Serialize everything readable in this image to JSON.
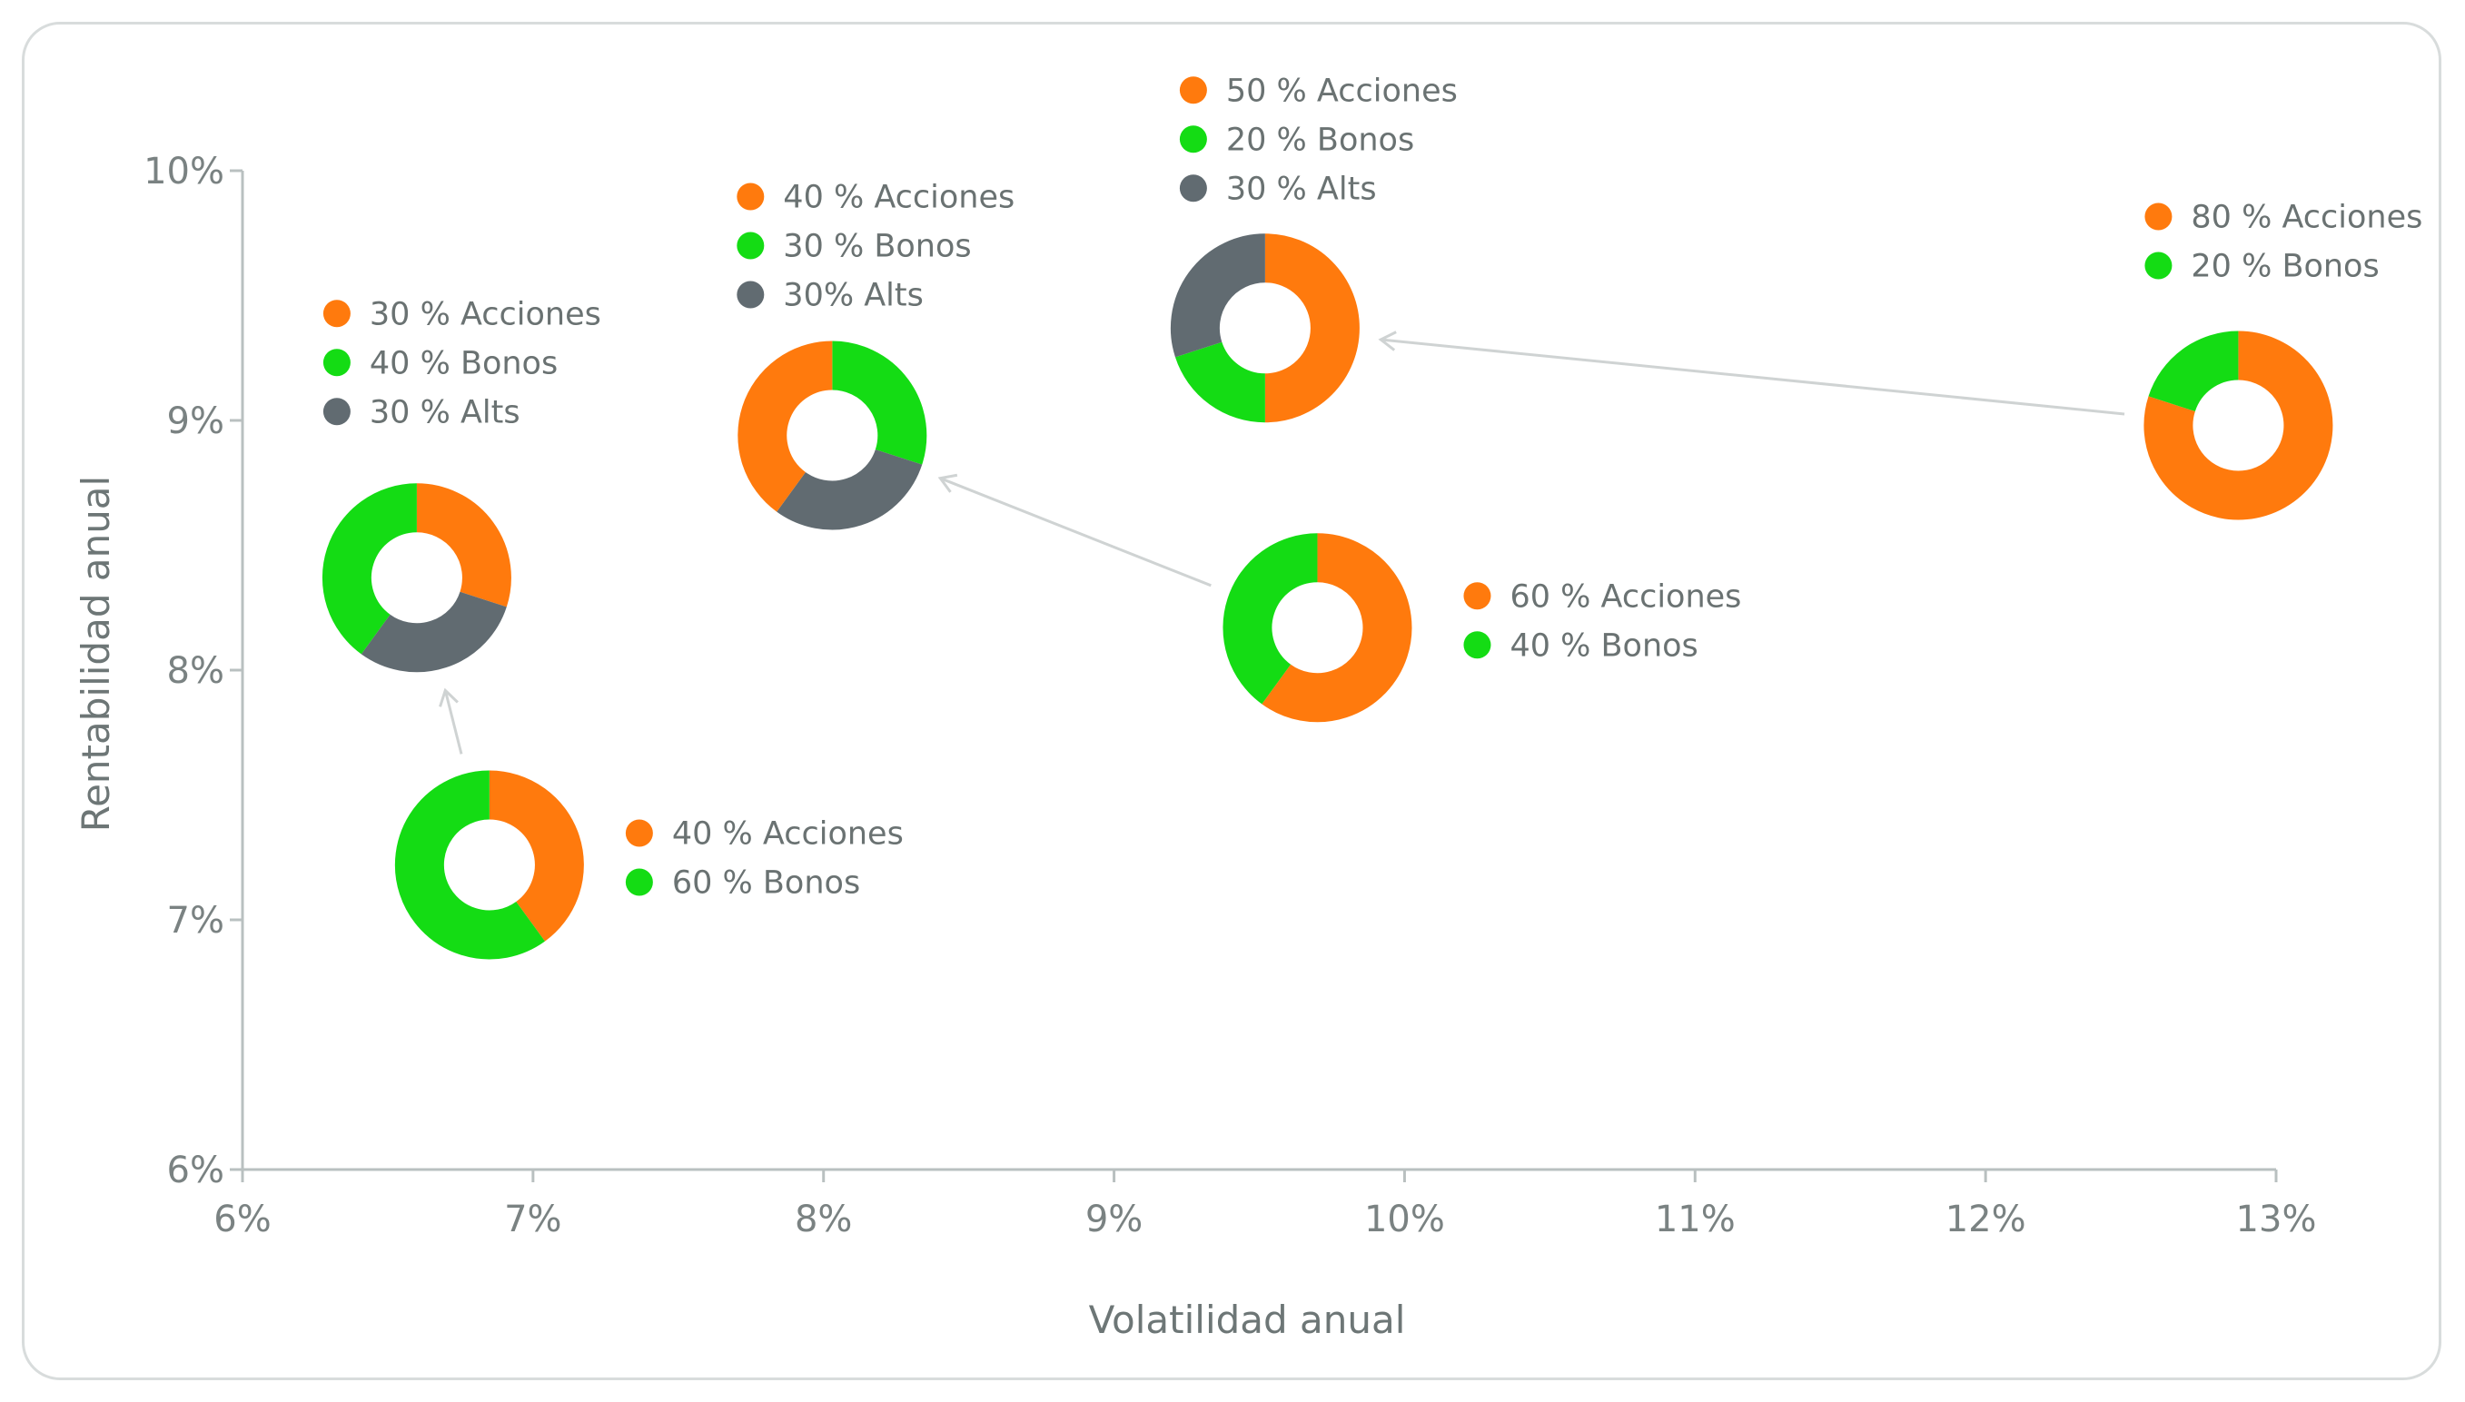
{
  "chart_data": {
    "type": "scatter",
    "title": "",
    "xlabel": "Volatilidad anual",
    "ylabel": "Rentabilidad anual",
    "xlim": [
      6,
      13
    ],
    "ylim": [
      6,
      10
    ],
    "x_ticks": [
      "6%",
      "7%",
      "8%",
      "9%",
      "10%",
      "11%",
      "12%",
      "13%"
    ],
    "y_ticks": [
      "6%",
      "7%",
      "8%",
      "9%",
      "10%"
    ],
    "grid": false,
    "colors": {
      "acciones": "#ff7a0d",
      "bonos": "#14dc14",
      "alts": "#616b71"
    },
    "points": [
      {
        "id": "p40-60",
        "x": 6.85,
        "y": 7.22,
        "allocation": [
          {
            "key": "acciones",
            "pct": 40
          },
          {
            "key": "bonos",
            "pct": 60
          }
        ],
        "legend": [
          "40 % Acciones",
          "60 % Bonos"
        ]
      },
      {
        "id": "p30-40-30",
        "x": 6.6,
        "y": 8.37,
        "allocation": [
          {
            "key": "acciones",
            "pct": 30
          },
          {
            "key": "alts",
            "pct": 30
          },
          {
            "key": "bonos",
            "pct": 40
          }
        ],
        "legend": [
          "30 % Acciones",
          "40 % Bonos",
          "30 % Alts"
        ]
      },
      {
        "id": "p40-30-30",
        "x": 8.03,
        "y": 8.94,
        "allocation": [
          {
            "key": "bonos",
            "pct": 30
          },
          {
            "key": "alts",
            "pct": 30
          },
          {
            "key": "acciones",
            "pct": 40
          }
        ],
        "legend": [
          "40 % Acciones",
          "30 % Bonos",
          "30% Alts"
        ]
      },
      {
        "id": "p60-40",
        "x": 9.7,
        "y": 8.17,
        "allocation": [
          {
            "key": "acciones",
            "pct": 60
          },
          {
            "key": "bonos",
            "pct": 40
          }
        ],
        "legend": [
          "60 % Acciones",
          "40 % Bonos"
        ]
      },
      {
        "id": "p50-20-30",
        "x": 9.52,
        "y": 9.37,
        "allocation": [
          {
            "key": "acciones",
            "pct": 50
          },
          {
            "key": "bonos",
            "pct": 20
          },
          {
            "key": "alts",
            "pct": 30
          }
        ],
        "legend": [
          "50 % Acciones",
          "20 % Bonos",
          "30 % Alts"
        ]
      },
      {
        "id": "p80-20",
        "x": 12.87,
        "y": 8.98,
        "allocation": [
          {
            "key": "acciones",
            "pct": 80
          },
          {
            "key": "bonos",
            "pct": 20
          }
        ],
        "legend": [
          "80 % Acciones",
          "20 % Bonos"
        ]
      }
    ],
    "arrows": [
      {
        "from": "p40-60",
        "to": "p30-40-30"
      },
      {
        "from": "p60-40",
        "to": "p40-30-30"
      },
      {
        "from": "p80-20",
        "to": "p50-20-30"
      }
    ]
  }
}
